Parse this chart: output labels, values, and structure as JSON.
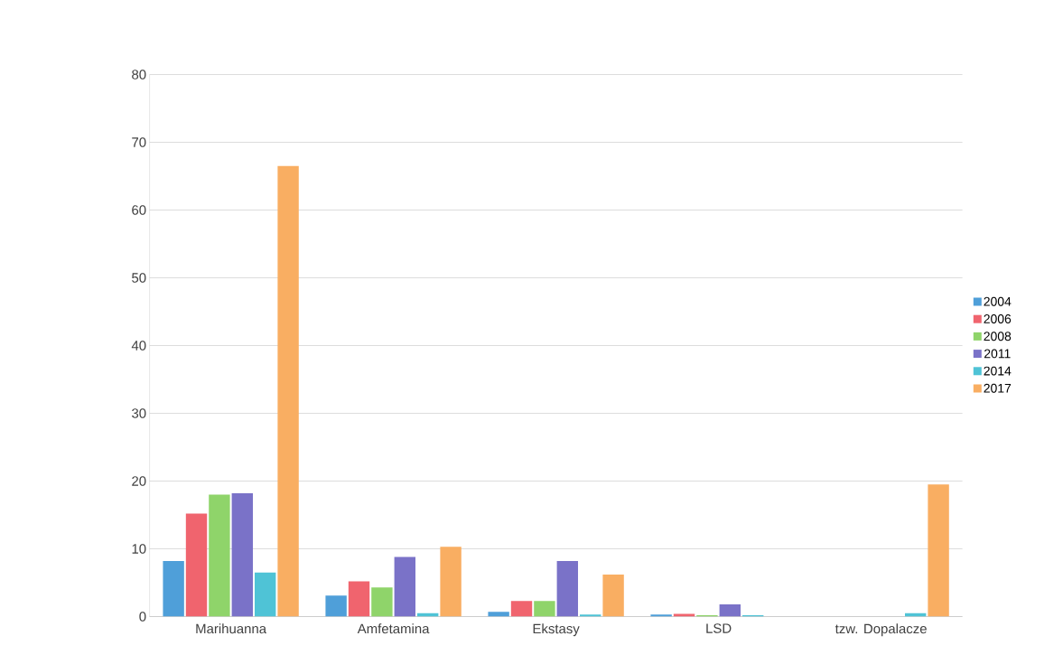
{
  "chart_data": {
    "type": "bar",
    "categories": [
      "Marihuanna",
      "Amfetamina",
      "Ekstasy",
      "LSD",
      "tzw. Dopalacze"
    ],
    "series": [
      {
        "name": "2004",
        "color": "#4f9fd9",
        "values": [
          8.2,
          3.1,
          0.7,
          0.3,
          null
        ]
      },
      {
        "name": "2006",
        "color": "#f0646e",
        "values": [
          15.2,
          5.2,
          2.3,
          0.4,
          null
        ]
      },
      {
        "name": "2008",
        "color": "#8fd46a",
        "values": [
          18,
          4.3,
          2.3,
          0.2,
          null
        ]
      },
      {
        "name": "2011",
        "color": "#7a72c8",
        "values": [
          18.2,
          8.8,
          8.2,
          1.8,
          null
        ]
      },
      {
        "name": "2014",
        "color": "#4fc3d6",
        "values": [
          6.5,
          0.5,
          0.3,
          0.2,
          0.5
        ]
      },
      {
        "name": "2017",
        "color": "#f9ae62",
        "values": [
          66.5,
          10.3,
          6.2,
          null,
          19.5
        ]
      }
    ],
    "ylim": [
      0,
      80
    ],
    "yticks": [
      0,
      10,
      20,
      30,
      40,
      50,
      60,
      70,
      80
    ],
    "grid": "y",
    "legend": "right"
  }
}
